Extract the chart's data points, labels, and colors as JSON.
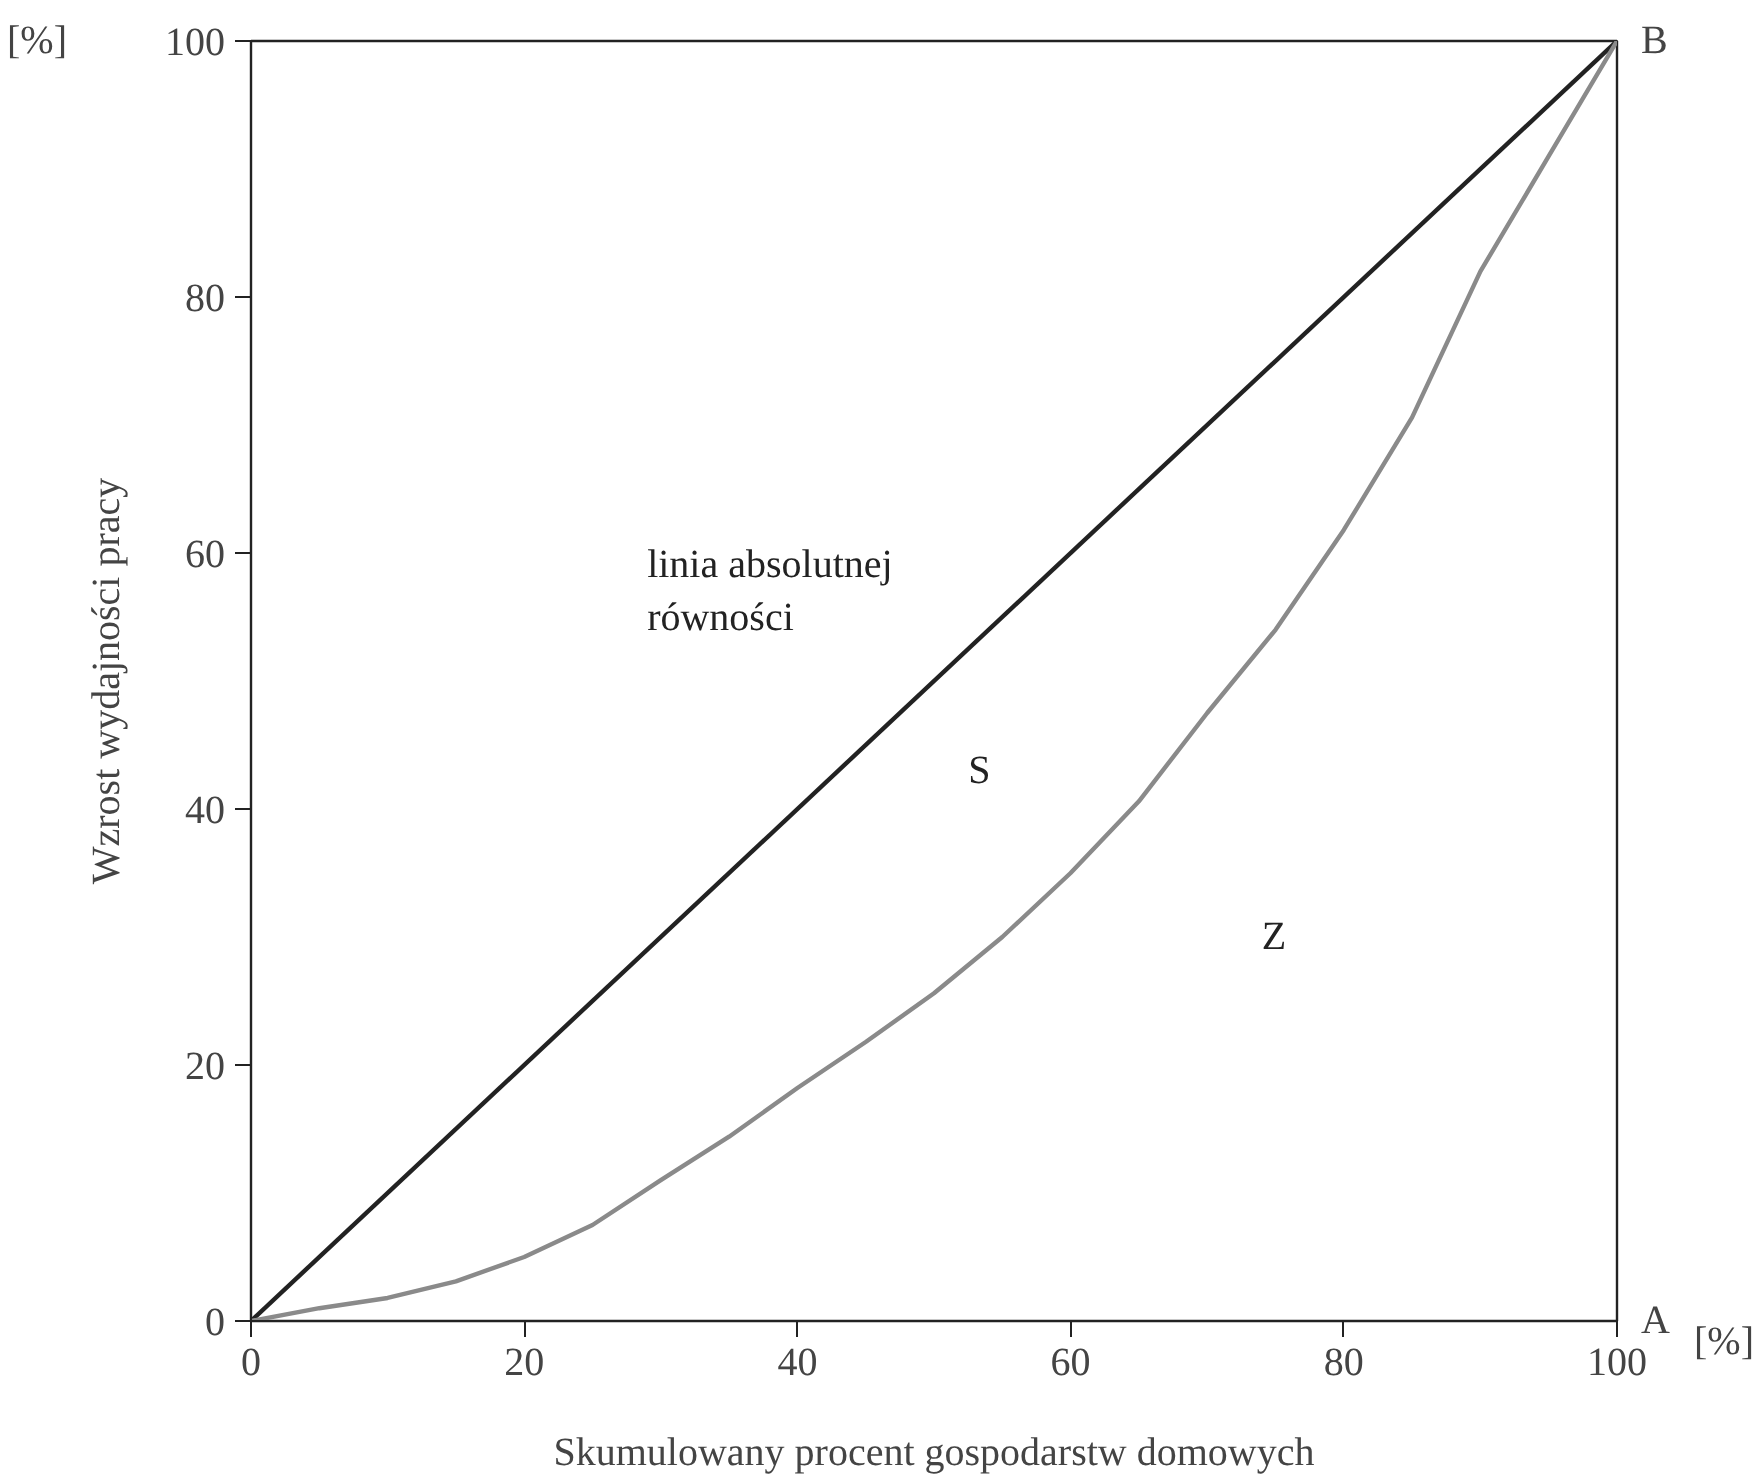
{
  "chart_data": {
    "type": "line",
    "xlabel": "Skumulowany procent gospodarstw domowych",
    "ylabel": "Wzrost wydajności pracy",
    "xlim": [
      0,
      100
    ],
    "ylim": [
      0,
      100
    ],
    "xticks": [
      0,
      20,
      40,
      60,
      80,
      100
    ],
    "yticks": [
      0,
      20,
      40,
      60,
      80,
      100
    ],
    "grid": false,
    "marker": "none",
    "line_style": "solid",
    "series": [
      {
        "color": "#222222",
        "x": [
          0,
          100
        ],
        "values": [
          0,
          100
        ]
      },
      {
        "color": "#8a8a8a",
        "x": [
          0,
          5,
          10,
          15,
          20,
          25,
          30,
          35,
          40,
          45,
          50,
          55,
          60,
          65,
          70,
          75,
          80,
          85,
          90,
          95,
          100
        ],
        "values": [
          0,
          1,
          1.8,
          3.1,
          5,
          7.5,
          11,
          14.4,
          18.2,
          21.8,
          25.6,
          30,
          35,
          40.6,
          47.5,
          54,
          61.8,
          70.6,
          82,
          91,
          100
        ]
      }
    ],
    "annotations": [
      "linia absolutnej\nrówności",
      "S",
      "Z",
      "A",
      "B",
      "[%]",
      "[%]"
    ]
  }
}
